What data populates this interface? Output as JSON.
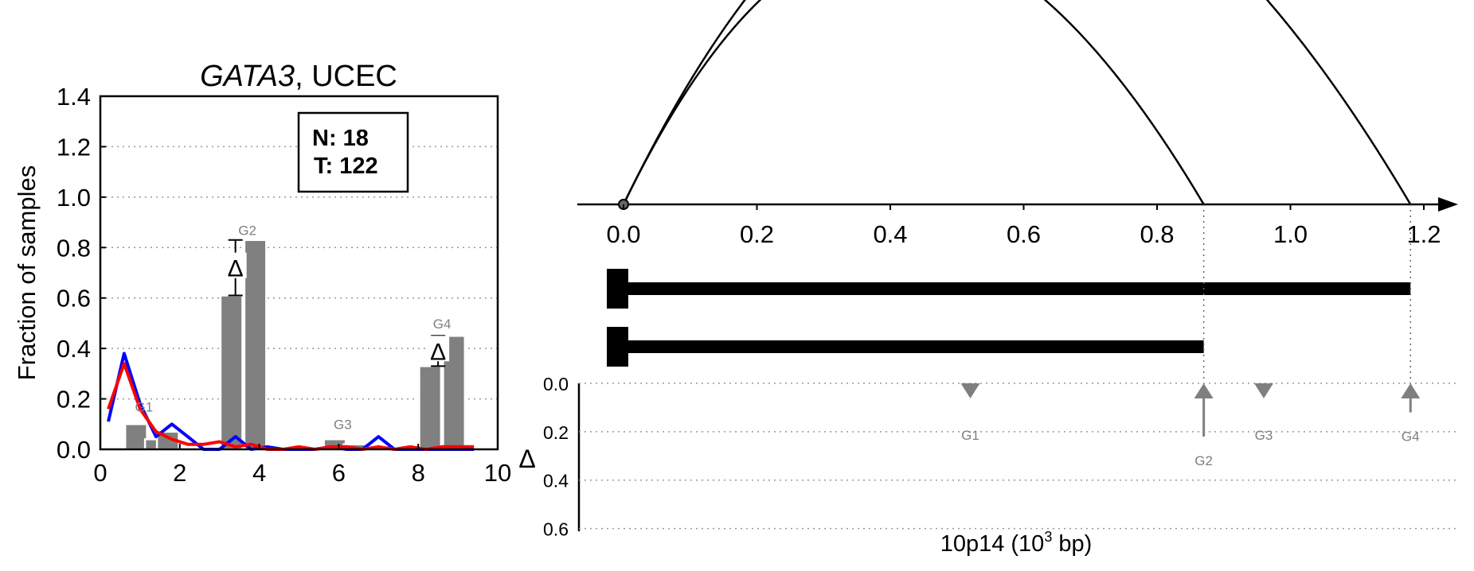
{
  "chart_data": [
    {
      "type": "bar",
      "title_gene": "GATA3",
      "title_rest": ", UCEC",
      "ylabel": "Fraction of samples",
      "xlim": [
        0,
        10
      ],
      "ylim": [
        0,
        1.4
      ],
      "xticks": [
        "0",
        "2",
        "4",
        "6",
        "8",
        "10"
      ],
      "yticks": [
        "0.0",
        "0.2",
        "0.4",
        "0.6",
        "0.8",
        "1.0",
        "1.2",
        "1.4"
      ],
      "legend": {
        "n_label": "N: 18",
        "t_label": "T: 122"
      },
      "bar_color": "#808080",
      "bars": [
        {
          "x": 0.9,
          "value": 0.1
        },
        {
          "x": 1.4,
          "value": 0.04
        },
        {
          "x": 1.7,
          "value": 0.07
        },
        {
          "x": 3.3,
          "value": 0.61
        },
        {
          "x": 3.9,
          "value": 0.83
        },
        {
          "x": 5.9,
          "value": 0.04
        },
        {
          "x": 6.4,
          "value": 0.02
        },
        {
          "x": 8.3,
          "value": 0.33
        },
        {
          "x": 8.9,
          "value": 0.45
        }
      ],
      "group_labels": [
        {
          "label": "G1",
          "x": 1.1,
          "y": 0.15
        },
        {
          "label": "G2",
          "x": 3.7,
          "y": 0.85
        },
        {
          "label": "G3",
          "x": 6.1,
          "y": 0.08
        },
        {
          "label": "G4",
          "x": 8.6,
          "y": 0.48
        }
      ],
      "delta_markers": [
        {
          "label": "Δ",
          "x": 3.4,
          "low": 0.61,
          "high": 0.83
        },
        {
          "label": "Δ",
          "x": 8.5,
          "low": 0.33,
          "high": 0.45
        }
      ],
      "series": [
        {
          "color": "#0000ff",
          "x": [
            0.2,
            0.6,
            1.0,
            1.4,
            1.8,
            2.2,
            2.6,
            3.0,
            3.4,
            3.8,
            4.2,
            4.6,
            5.0,
            5.4,
            5.8,
            6.2,
            6.6,
            7.0,
            7.4,
            7.8,
            8.2,
            8.6,
            9.0,
            9.4
          ],
          "y": [
            0.11,
            0.38,
            0.18,
            0.05,
            0.1,
            0.05,
            0.0,
            0.0,
            0.05,
            0.0,
            0.01,
            0.0,
            0.0,
            0.0,
            0.01,
            0.0,
            0.0,
            0.05,
            0.0,
            0.0,
            0.0,
            0.0,
            0.0,
            0.0
          ]
        },
        {
          "color": "#ff0000",
          "x": [
            0.2,
            0.6,
            1.0,
            1.4,
            1.8,
            2.2,
            2.6,
            3.0,
            3.4,
            3.8,
            4.2,
            4.6,
            5.0,
            5.4,
            5.8,
            6.2,
            6.6,
            7.0,
            7.4,
            7.8,
            8.2,
            8.6,
            9.0,
            9.4
          ],
          "y": [
            0.16,
            0.34,
            0.16,
            0.07,
            0.04,
            0.02,
            0.02,
            0.03,
            0.01,
            0.02,
            0.0,
            0.0,
            0.01,
            0.0,
            0.01,
            0.01,
            0.0,
            0.01,
            0.0,
            0.01,
            0.0,
            0.01,
            0.01,
            0.01
          ]
        }
      ]
    },
    {
      "type": "diagram",
      "xlabel_main": "10p14 (10",
      "xlabel_sup": "3",
      "xlabel_end": " bp)",
      "xlim": [
        0,
        1.2
      ],
      "xticks": [
        "0.0",
        "0.2",
        "0.4",
        "0.6",
        "0.8",
        "1.0",
        "1.2"
      ],
      "arcs": [
        {
          "from": 0.0,
          "to": 0.87
        },
        {
          "from": 0.0,
          "to": 1.18
        }
      ],
      "isoforms": [
        {
          "start": 0.0,
          "end": 1.18
        },
        {
          "start": 0.0,
          "end": 0.87
        }
      ],
      "delta_axis": {
        "label": "Δ",
        "ylim": [
          0,
          0.7
        ],
        "yticks": [
          "0.0",
          "0.2",
          "0.4",
          "0.6"
        ],
        "markers": [
          {
            "label": "G1",
            "x": 0.52,
            "direction": "down",
            "value": 0.0
          },
          {
            "label": "G2",
            "x": 0.87,
            "direction": "up",
            "value": 0.22
          },
          {
            "label": "G3",
            "x": 0.96,
            "direction": "down",
            "value": 0.0
          },
          {
            "label": "G4",
            "x": 1.18,
            "direction": "up",
            "value": 0.12
          }
        ]
      }
    }
  ]
}
